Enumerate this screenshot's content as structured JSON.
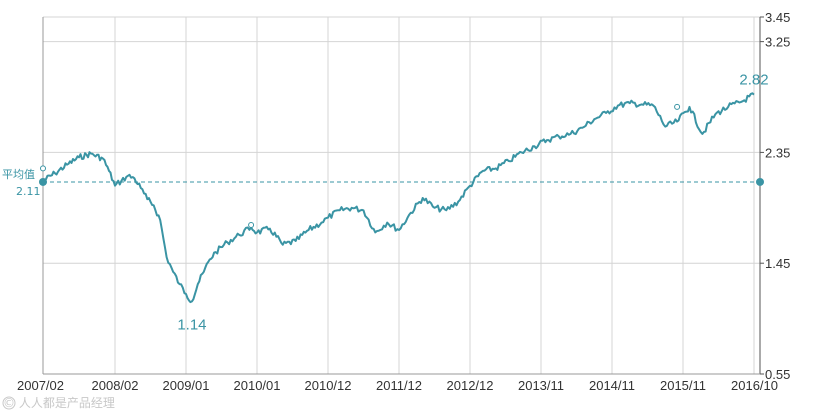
{
  "chart_data": {
    "type": "line",
    "xlabel": "",
    "ylabel": "",
    "x_ticks": [
      "2007/02",
      "2008/02",
      "2009/01",
      "2010/01",
      "2010/12",
      "2011/12",
      "2012/12",
      "2013/11",
      "2014/11",
      "2015/11",
      "2016/10"
    ],
    "y_ticks": [
      0.55,
      1.45,
      2.35,
      3.25,
      3.45
    ],
    "ylim": [
      0.55,
      3.45
    ],
    "grid": true,
    "average": {
      "label": "平均值",
      "value": 2.11,
      "value_label": "2.11"
    },
    "annotations": [
      {
        "text": "1.14",
        "x": "2009/02",
        "y": 1.14
      },
      {
        "text": "2.82",
        "x": "2016/10",
        "y": 2.82
      }
    ],
    "series": [
      {
        "color": "#3a94a4",
        "points": [
          [
            "2007/02",
            2.12
          ],
          [
            "2007/04",
            2.18
          ],
          [
            "2007/06",
            2.25
          ],
          [
            "2007/08",
            2.31
          ],
          [
            "2007/10",
            2.34
          ],
          [
            "2007/12",
            2.3
          ],
          [
            "2008/01",
            2.2
          ],
          [
            "2008/02",
            2.08
          ],
          [
            "2008/03",
            2.12
          ],
          [
            "2008/04",
            2.16
          ],
          [
            "2008/05",
            2.14
          ],
          [
            "2008/06",
            2.06
          ],
          [
            "2008/07",
            1.97
          ],
          [
            "2008/08",
            1.92
          ],
          [
            "2008/09",
            1.8
          ],
          [
            "2008/10",
            1.5
          ],
          [
            "2008/11",
            1.38
          ],
          [
            "2008/12",
            1.28
          ],
          [
            "2009/01",
            1.2
          ],
          [
            "2009/02",
            1.14
          ],
          [
            "2009/03",
            1.28
          ],
          [
            "2009/04",
            1.38
          ],
          [
            "2009/05",
            1.48
          ],
          [
            "2009/06",
            1.54
          ],
          [
            "2009/08",
            1.62
          ],
          [
            "2009/10",
            1.68
          ],
          [
            "2009/12",
            1.74
          ],
          [
            "2010/01",
            1.7
          ],
          [
            "2010/03",
            1.73
          ],
          [
            "2010/05",
            1.6
          ],
          [
            "2010/07",
            1.63
          ],
          [
            "2010/09",
            1.72
          ],
          [
            "2010/11",
            1.78
          ],
          [
            "2010/12",
            1.82
          ],
          [
            "2011/02",
            1.88
          ],
          [
            "2011/04",
            1.9
          ],
          [
            "2011/06",
            1.88
          ],
          [
            "2011/08",
            1.7
          ],
          [
            "2011/10",
            1.78
          ],
          [
            "2011/12",
            1.72
          ],
          [
            "2012/02",
            1.86
          ],
          [
            "2012/04",
            1.98
          ],
          [
            "2012/06",
            1.9
          ],
          [
            "2012/08",
            1.88
          ],
          [
            "2012/10",
            1.95
          ],
          [
            "2012/12",
            2.08
          ],
          [
            "2013/02",
            2.2
          ],
          [
            "2013/04",
            2.22
          ],
          [
            "2013/06",
            2.28
          ],
          [
            "2013/08",
            2.35
          ],
          [
            "2013/10",
            2.4
          ],
          [
            "2013/12",
            2.45
          ],
          [
            "2014/02",
            2.48
          ],
          [
            "2014/04",
            2.5
          ],
          [
            "2014/06",
            2.55
          ],
          [
            "2014/08",
            2.62
          ],
          [
            "2014/10",
            2.67
          ],
          [
            "2014/12",
            2.73
          ],
          [
            "2015/02",
            2.75
          ],
          [
            "2015/04",
            2.74
          ],
          [
            "2015/06",
            2.73
          ],
          [
            "2015/08",
            2.56
          ],
          [
            "2015/10",
            2.6
          ],
          [
            "2015/12",
            2.72
          ],
          [
            "2016/02",
            2.5
          ],
          [
            "2016/04",
            2.66
          ],
          [
            "2016/06",
            2.72
          ],
          [
            "2016/08",
            2.76
          ],
          [
            "2016/10",
            2.82
          ]
        ]
      }
    ]
  },
  "watermark": {
    "text": "© 人人都是产品经理",
    "icon": "copyright-icon"
  }
}
